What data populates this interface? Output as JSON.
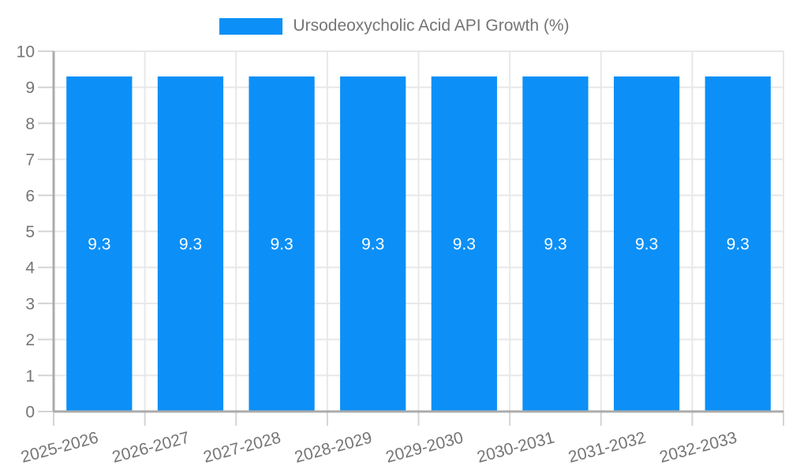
{
  "chart_data": {
    "type": "bar",
    "title": "",
    "legend": {
      "label": "Ursodeoxycholic Acid API Growth (%)",
      "position": "top-center"
    },
    "categories": [
      "2025-2026",
      "2026-2027",
      "2027-2028",
      "2028-2029",
      "2029-2030",
      "2030-2031",
      "2031-2032",
      "2032-2033"
    ],
    "series": [
      {
        "name": "Ursodeoxycholic Acid API Growth (%)",
        "values": [
          9.3,
          9.3,
          9.3,
          9.3,
          9.3,
          9.3,
          9.3,
          9.3
        ]
      }
    ],
    "value_labels": [
      "9.3",
      "9.3",
      "9.3",
      "9.3",
      "9.3",
      "9.3",
      "9.3",
      "9.3"
    ],
    "ylim": [
      0,
      10
    ],
    "yticks": [
      0,
      1,
      2,
      3,
      4,
      5,
      6,
      7,
      8,
      9,
      10
    ],
    "ytick_labels": [
      "0",
      "1",
      "2",
      "3",
      "4",
      "5",
      "6",
      "7",
      "8",
      "9",
      "10"
    ],
    "grid_horizontal": true,
    "grid_vertical_boundaries": true,
    "xlabel_rotation_deg": -15,
    "colors": {
      "bar": "#0C90F7",
      "grid": "#E8E8E8",
      "tick": "#D4D4D4",
      "axis": "#ABABAB",
      "tick_label": "#757575",
      "value_label": "#FFFFFF",
      "legend_label": "#757575",
      "background": "#FFFFFF"
    }
  }
}
